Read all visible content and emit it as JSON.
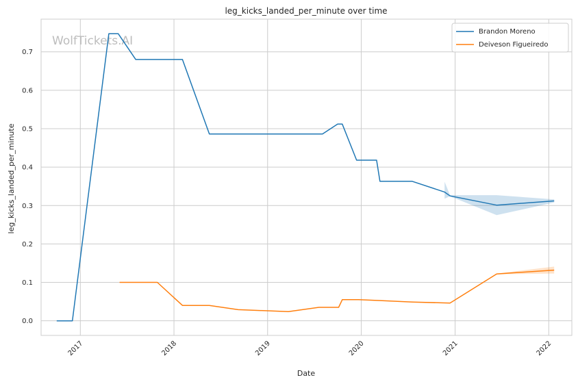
{
  "chart_data": {
    "type": "line",
    "title": "leg_kicks_landed_per_minute over time",
    "xlabel": "Date",
    "ylabel": "leg_kicks_landed_per_minute",
    "watermark": "WolfTickets.AI",
    "xlim": [
      "2016-08-01",
      "2022-04-01"
    ],
    "ylim": [
      -0.038,
      0.785
    ],
    "x_ticks": [
      {
        "value": "2017-01-01",
        "label": "2017"
      },
      {
        "value": "2018-01-01",
        "label": "2018"
      },
      {
        "value": "2019-01-01",
        "label": "2019"
      },
      {
        "value": "2020-01-01",
        "label": "2020"
      },
      {
        "value": "2021-01-01",
        "label": "2021"
      },
      {
        "value": "2022-01-01",
        "label": "2022"
      }
    ],
    "y_ticks": [
      {
        "value": 0.0,
        "label": "0.0"
      },
      {
        "value": 0.1,
        "label": "0.1"
      },
      {
        "value": 0.2,
        "label": "0.2"
      },
      {
        "value": 0.3,
        "label": "0.3"
      },
      {
        "value": 0.4,
        "label": "0.4"
      },
      {
        "value": 0.5,
        "label": "0.5"
      },
      {
        "value": 0.6,
        "label": "0.6"
      },
      {
        "value": 0.7,
        "label": "0.7"
      }
    ],
    "grid": true,
    "legend_position": "top-right",
    "series": [
      {
        "name": "Brandon Moreno",
        "color": "#1f77b4",
        "points": [
          [
            "2016-10-01",
            0.0
          ],
          [
            "2016-12-01",
            0.0
          ],
          [
            "2017-04-22",
            0.747
          ],
          [
            "2017-05-29",
            0.747
          ],
          [
            "2017-08-05",
            0.68
          ],
          [
            "2018-02-03",
            0.68
          ],
          [
            "2018-05-19",
            0.486
          ],
          [
            "2019-08-03",
            0.486
          ],
          [
            "2019-10-01",
            0.512
          ],
          [
            "2019-10-19",
            0.512
          ],
          [
            "2019-12-14",
            0.418
          ],
          [
            "2020-03-01",
            0.418
          ],
          [
            "2020-03-14",
            0.363
          ],
          [
            "2020-07-18",
            0.363
          ],
          [
            "2020-11-21",
            0.335
          ],
          [
            "2020-12-12",
            0.325
          ],
          [
            "2021-06-12",
            0.301
          ],
          [
            "2022-01-22",
            0.312
          ]
        ],
        "band": [
          [
            "2020-11-21",
            0.318,
            0.362
          ],
          [
            "2020-12-12",
            0.324,
            0.327
          ],
          [
            "2021-06-12",
            0.275,
            0.327
          ],
          [
            "2022-01-22",
            0.308,
            0.316
          ]
        ]
      },
      {
        "name": "Deiveson Figueiredo",
        "color": "#ff7f0e",
        "points": [
          [
            "2017-06-03",
            0.1
          ],
          [
            "2017-10-28",
            0.1
          ],
          [
            "2018-02-03",
            0.04
          ],
          [
            "2018-05-19",
            0.04
          ],
          [
            "2018-09-08",
            0.029
          ],
          [
            "2019-03-23",
            0.024
          ],
          [
            "2019-07-20",
            0.035
          ],
          [
            "2019-10-05",
            0.035
          ],
          [
            "2019-10-19",
            0.055
          ],
          [
            "2019-12-21",
            0.055
          ],
          [
            "2020-03-01",
            0.053
          ],
          [
            "2020-07-18",
            0.049
          ],
          [
            "2020-12-12",
            0.046
          ],
          [
            "2021-06-12",
            0.122
          ],
          [
            "2022-01-22",
            0.132
          ]
        ],
        "band": [
          [
            "2021-06-12",
            0.121,
            0.123
          ],
          [
            "2022-01-22",
            0.123,
            0.141
          ]
        ]
      }
    ]
  }
}
